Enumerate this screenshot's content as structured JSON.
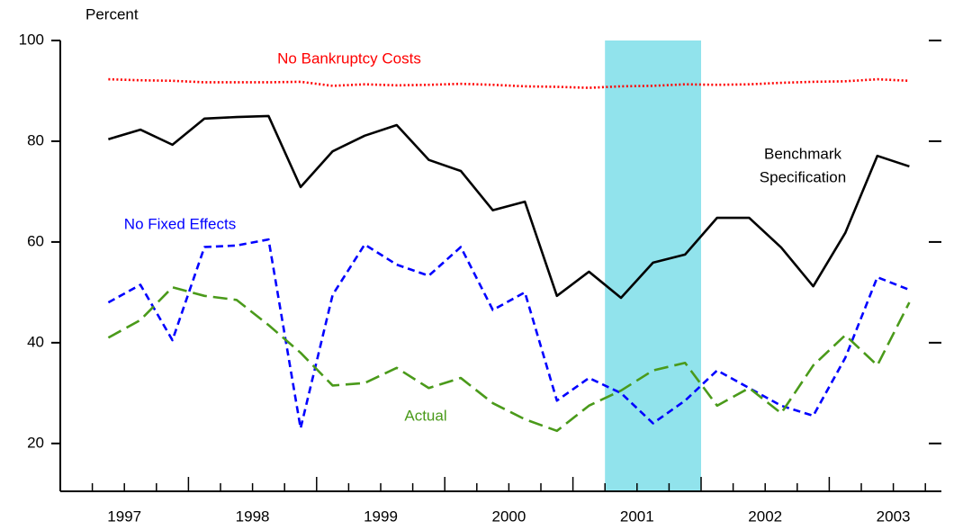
{
  "chart_data": {
    "type": "line",
    "y_label": "Percent",
    "x": [
      1997.375,
      1997.625,
      1997.875,
      1998.125,
      1998.375,
      1998.625,
      1998.875,
      1999.125,
      1999.375,
      1999.625,
      1999.875,
      2000.125,
      2000.375,
      2000.625,
      2000.875,
      2001.125,
      2001.375,
      2001.625,
      2001.875,
      2002.125,
      2002.375,
      2002.625,
      2002.875,
      2003.125,
      2003.375,
      2003.625
    ],
    "series": [
      {
        "name": "No Bankruptcy Costs",
        "color": "#ff0000",
        "dash": "2,2.5",
        "values": [
          92.3,
          92.1,
          92.0,
          91.7,
          91.7,
          91.7,
          91.8,
          91.0,
          91.3,
          91.1,
          91.2,
          91.4,
          91.2,
          90.9,
          90.8,
          90.6,
          90.9,
          91.0,
          91.3,
          91.2,
          91.3,
          91.6,
          91.8,
          91.9,
          92.3,
          92.0
        ]
      },
      {
        "name": "Benchmark Specification",
        "color": "#000000",
        "dash": "none",
        "values": [
          80.4,
          82.3,
          79.3,
          84.5,
          84.8,
          85.0,
          70.9,
          78.0,
          81.1,
          83.2,
          76.3,
          74.1,
          66.3,
          68.0,
          49.3,
          54.1,
          48.9,
          55.9,
          57.5,
          64.8,
          64.8,
          58.9,
          51.2,
          61.8,
          77.1,
          75.0
        ]
      },
      {
        "name": "No Fixed Effects",
        "color": "#0000ff",
        "dash": "8,5",
        "values": [
          48,
          51.5,
          40.5,
          59,
          59.3,
          60.5,
          23,
          49.5,
          59.5,
          55.5,
          53.3,
          59,
          46.5,
          50,
          28.5,
          33,
          30,
          24,
          28.5,
          34.5,
          31,
          27.5,
          25.5,
          37,
          53,
          50.5
        ]
      },
      {
        "name": "Actual",
        "color": "#4a9a1a",
        "dash": "16,7",
        "values": [
          41,
          44.5,
          51,
          49.3,
          48.5,
          43.5,
          38,
          31.5,
          32,
          35,
          31,
          33,
          28,
          24.8,
          22.5,
          27.5,
          30.5,
          34.5,
          36,
          27.5,
          31,
          26,
          35.5,
          41.5,
          35.5,
          48
        ]
      }
    ],
    "annotations": [
      {
        "text": "No Bankruptcy Costs",
        "color": "#ff0000"
      },
      {
        "text": "Benchmark",
        "color": "#000000"
      },
      {
        "text": "Specification",
        "color": "#000000"
      },
      {
        "text": "No Fixed Effects",
        "color": "#0000ff"
      },
      {
        "text": "Actual",
        "color": "#4a9a1a"
      }
    ],
    "shade": [
      2001.25,
      2002.0
    ],
    "shade_color": "#91e3ec",
    "xlim": [
      1997.0,
      2003.875
    ],
    "xticks": [
      {
        "value": 1997.5,
        "label": "1997"
      },
      {
        "value": 1998.5,
        "label": "1998"
      },
      {
        "value": 1999.5,
        "label": "1999"
      },
      {
        "value": 2000.5,
        "label": "2000"
      },
      {
        "value": 2001.5,
        "label": "2001"
      },
      {
        "value": 2002.5,
        "label": "2002"
      },
      {
        "value": 2003.5,
        "label": "2003"
      }
    ],
    "ylim": [
      10.5,
      100
    ],
    "yticks": [
      20,
      40,
      60,
      80,
      100
    ]
  }
}
